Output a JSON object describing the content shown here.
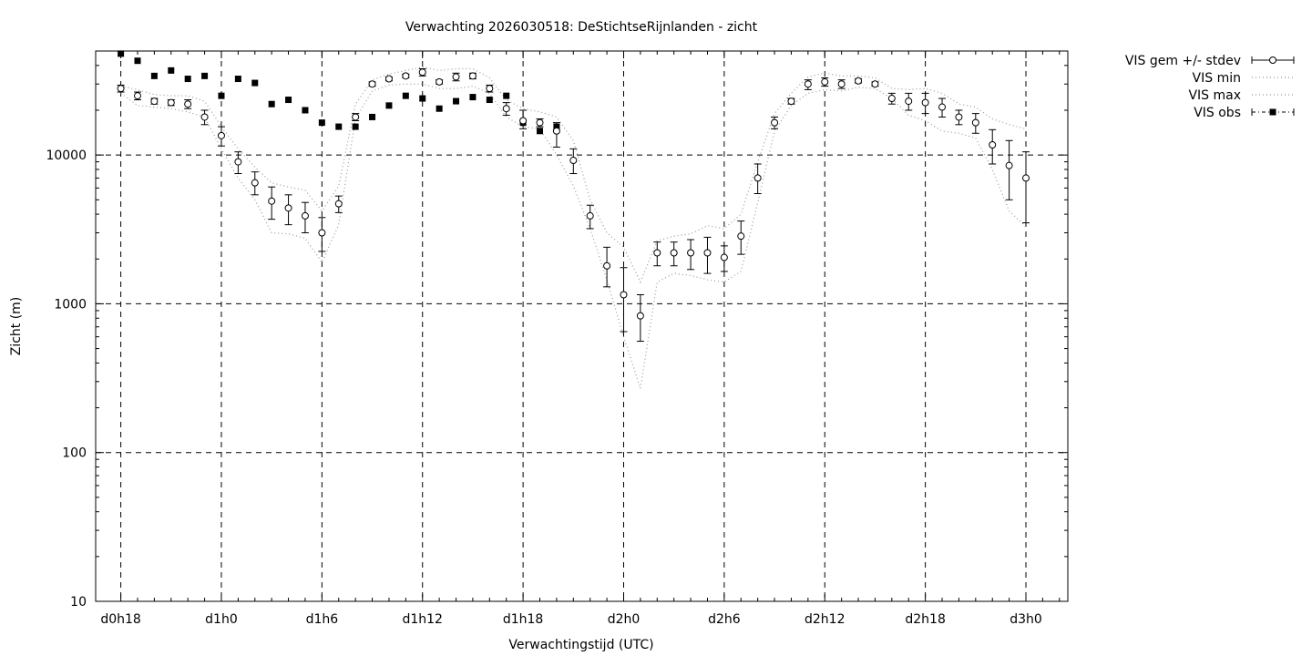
{
  "chart_data": {
    "type": "scatter",
    "title": "Verwachting 2026030518: DeStichtseRijnlanden - zicht",
    "xlabel": "Verwachtingstijd (UTC)",
    "ylabel": "Zicht (m)",
    "yscale": "log",
    "ylim": [
      10,
      50000
    ],
    "xlim_hours": [
      -1.5,
      56.5
    ],
    "x_ticks": [
      {
        "h": 0,
        "label": "d0h18"
      },
      {
        "h": 6,
        "label": "d1h0"
      },
      {
        "h": 12,
        "label": "d1h6"
      },
      {
        "h": 18,
        "label": "d1h12"
      },
      {
        "h": 24,
        "label": "d1h18"
      },
      {
        "h": 30,
        "label": "d2h0"
      },
      {
        "h": 36,
        "label": "d2h6"
      },
      {
        "h": 42,
        "label": "d2h12"
      },
      {
        "h": 48,
        "label": "d2h18"
      },
      {
        "h": 54,
        "label": "d3h0"
      }
    ],
    "y_ticks": [
      {
        "v": 10,
        "label": "10"
      },
      {
        "v": 100,
        "label": "100"
      },
      {
        "v": 1000,
        "label": "1000"
      },
      {
        "v": 10000,
        "label": "10000"
      }
    ],
    "grid": true,
    "legend_position": "top-right-outside",
    "x": [
      0,
      1,
      2,
      3,
      4,
      5,
      6,
      7,
      8,
      9,
      10,
      11,
      12,
      13,
      14,
      15,
      16,
      17,
      18,
      19,
      20,
      21,
      22,
      23,
      24,
      25,
      26,
      27,
      28,
      29,
      30,
      31,
      32,
      33,
      34,
      35,
      36,
      37,
      38,
      39,
      40,
      41,
      42,
      43,
      44,
      45,
      46,
      47,
      48,
      49,
      50,
      51,
      52,
      53,
      54
    ],
    "series": [
      {
        "name": "VIS gem +/- stdev",
        "style": "errorbars",
        "mean": [
          28000,
          25000,
          23000,
          22500,
          22000,
          18000,
          13500,
          9000,
          6500,
          4900,
          4400,
          3900,
          3000,
          4700,
          18000,
          30000,
          32500,
          34000,
          36000,
          31000,
          33500,
          34000,
          28000,
          20500,
          17000,
          16500,
          14500,
          9200,
          3900,
          1800,
          1150,
          830,
          2200,
          2200,
          2200,
          2200,
          2050,
          2850,
          7000,
          16500,
          23000,
          30000,
          31000,
          30000,
          31500,
          30000,
          24000,
          23000,
          22500,
          21000,
          18000,
          16500,
          11700,
          8500,
          7000
        ],
        "low": [
          26500,
          23500,
          22000,
          21500,
          20500,
          16000,
          11500,
          7500,
          5400,
          3700,
          3400,
          3000,
          2250,
          4100,
          17000,
          29000,
          31500,
          33000,
          34000,
          30000,
          31500,
          32500,
          26500,
          18500,
          15000,
          15500,
          11300,
          7500,
          3200,
          1300,
          650,
          560,
          1800,
          1800,
          1700,
          1600,
          1650,
          2150,
          5500,
          15000,
          22000,
          27500,
          29000,
          28000,
          30500,
          29000,
          22000,
          20000,
          19000,
          18000,
          16000,
          14000,
          8700,
          5000,
          3500
        ],
        "high": [
          29500,
          26500,
          24000,
          23500,
          23500,
          20000,
          15500,
          10500,
          7700,
          6100,
          5400,
          4800,
          3800,
          5300,
          19000,
          31000,
          33500,
          35000,
          38000,
          32000,
          35500,
          35500,
          29500,
          22500,
          20000,
          17500,
          16500,
          11000,
          4600,
          2400,
          1750,
          1150,
          2600,
          2600,
          2700,
          2800,
          2450,
          3600,
          8700,
          18000,
          24000,
          32000,
          33000,
          32000,
          32500,
          31000,
          26000,
          26000,
          26000,
          24000,
          20000,
          19000,
          14800,
          12500,
          10500
        ]
      },
      {
        "name": "VIS min",
        "style": "dotted",
        "values": [
          26000,
          21500,
          21000,
          20500,
          19500,
          18000,
          11000,
          7000,
          5000,
          3000,
          2950,
          2750,
          1900,
          3400,
          17500,
          27000,
          29500,
          30000,
          30000,
          28000,
          28000,
          29000,
          26000,
          18000,
          15500,
          15000,
          10000,
          6200,
          3200,
          1450,
          600,
          270,
          1400,
          1600,
          1550,
          1450,
          1400,
          1650,
          4800,
          14500,
          21500,
          26000,
          27500,
          27000,
          28500,
          28000,
          24000,
          18500,
          17000,
          14500,
          14000,
          13000,
          8000,
          4200,
          3300
        ]
      },
      {
        "name": "VIS max",
        "style": "dotted",
        "values": [
          29000,
          27500,
          25500,
          25000,
          25000,
          23000,
          15500,
          11000,
          8300,
          6500,
          6100,
          5800,
          4200,
          6200,
          22000,
          32000,
          35000,
          37000,
          39000,
          37000,
          38000,
          38000,
          33000,
          23500,
          20500,
          19500,
          18000,
          12500,
          5000,
          3000,
          2400,
          1400,
          2650,
          2850,
          2950,
          3350,
          3200,
          4000,
          9000,
          19000,
          26000,
          33500,
          35500,
          34000,
          34000,
          33000,
          28000,
          27500,
          28000,
          26000,
          22000,
          21000,
          17500,
          16000,
          15000
        ]
      },
      {
        "name": "VIS obs",
        "style": "filled-squares",
        "x": [
          0,
          1,
          2,
          3,
          4,
          5,
          6,
          7,
          8,
          9,
          10,
          11,
          12,
          13,
          14,
          15,
          16,
          17,
          18,
          19,
          20,
          21,
          22,
          23,
          24,
          25,
          26
        ],
        "values": [
          48000,
          43000,
          34000,
          37000,
          32500,
          34000,
          25000,
          32500,
          30500,
          22000,
          23500,
          20000,
          16500,
          15500,
          15500,
          18000,
          21500,
          25000,
          24000,
          20500,
          23000,
          24500,
          23500,
          25000,
          16500,
          14500,
          15500
        ]
      }
    ]
  }
}
